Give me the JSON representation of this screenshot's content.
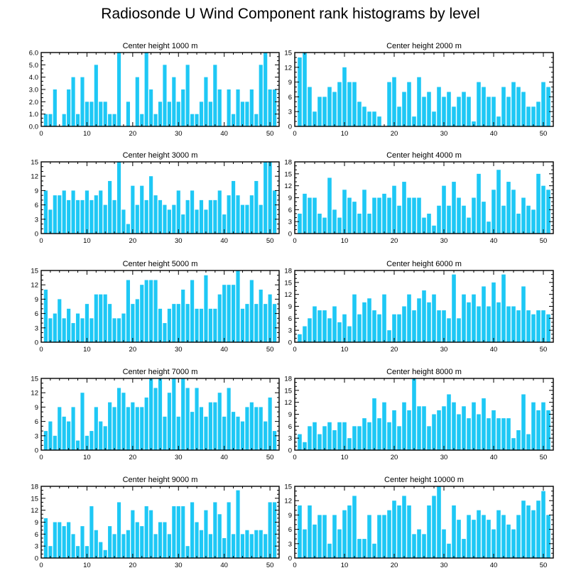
{
  "title": "Radiosonde U Wind Component rank histograms by level",
  "bar_color": "#1ec8f5",
  "chart_data": [
    {
      "type": "bar",
      "title": "Center height 1000 m",
      "x": [
        1,
        2,
        3,
        4,
        5,
        6,
        7,
        8,
        9,
        10,
        11,
        12,
        13,
        14,
        15,
        16,
        17,
        18,
        19,
        20,
        21,
        22,
        23,
        24,
        25,
        26,
        27,
        28,
        29,
        30,
        31,
        32,
        33,
        34,
        35,
        36,
        37,
        38,
        39,
        40,
        41,
        42,
        43,
        44,
        45,
        46,
        47,
        48,
        49,
        50,
        51
      ],
      "values": [
        1,
        1,
        3,
        0,
        1,
        3,
        4,
        1,
        4,
        2,
        2,
        5,
        2,
        2,
        1,
        1,
        6,
        0,
        2,
        0,
        4,
        1,
        6,
        3,
        1,
        2,
        5,
        2,
        4,
        2,
        3,
        5,
        1,
        1,
        2,
        4,
        2,
        5,
        3,
        0,
        3,
        1,
        3,
        2,
        2,
        3,
        1,
        5,
        6,
        3,
        3
      ],
      "xlim": [
        0,
        52
      ],
      "ylim": [
        0,
        6
      ],
      "yticks": [
        "0.0",
        "1.0",
        "2.0",
        "3.0",
        "4.0",
        "5.0",
        "6.0"
      ],
      "xticks": [
        "0",
        "10",
        "20",
        "30",
        "40",
        "50"
      ]
    },
    {
      "type": "bar",
      "title": "Center height 2000 m",
      "x": [
        1,
        2,
        3,
        4,
        5,
        6,
        7,
        8,
        9,
        10,
        11,
        12,
        13,
        14,
        15,
        16,
        17,
        18,
        19,
        20,
        21,
        22,
        23,
        24,
        25,
        26,
        27,
        28,
        29,
        30,
        31,
        32,
        33,
        34,
        35,
        36,
        37,
        38,
        39,
        40,
        41,
        42,
        43,
        44,
        45,
        46,
        47,
        48,
        49,
        50,
        51
      ],
      "values": [
        14,
        15,
        8,
        3,
        6,
        6,
        8,
        7,
        9,
        12,
        9,
        9,
        5,
        4,
        3,
        3,
        2,
        0,
        9,
        10,
        4,
        7,
        9,
        2,
        10,
        6,
        7,
        3,
        8,
        6,
        7,
        4,
        6,
        7,
        6,
        1,
        9,
        8,
        6,
        6,
        2,
        8,
        6,
        9,
        8,
        7,
        4,
        4,
        5,
        9,
        8
      ],
      "xlim": [
        0,
        52
      ],
      "ylim": [
        0,
        15
      ],
      "yticks": [
        "0",
        "3",
        "6",
        "9",
        "12",
        "15"
      ],
      "xticks": [
        "0",
        "10",
        "20",
        "30",
        "40",
        "50"
      ]
    },
    {
      "type": "bar",
      "title": "Center height 3000 m",
      "x": [
        1,
        2,
        3,
        4,
        5,
        6,
        7,
        8,
        9,
        10,
        11,
        12,
        13,
        14,
        15,
        16,
        17,
        18,
        19,
        20,
        21,
        22,
        23,
        24,
        25,
        26,
        27,
        28,
        29,
        30,
        31,
        32,
        33,
        34,
        35,
        36,
        37,
        38,
        39,
        40,
        41,
        42,
        43,
        44,
        45,
        46,
        47,
        48,
        49,
        50,
        51
      ],
      "values": [
        9,
        5,
        8,
        8,
        9,
        7,
        9,
        7,
        7,
        9,
        7,
        8,
        9,
        6,
        11,
        7,
        15,
        5,
        2,
        10,
        6,
        10,
        7,
        12,
        8,
        7,
        6,
        5,
        6,
        9,
        4,
        7,
        9,
        5,
        7,
        5,
        7,
        7,
        9,
        4,
        8,
        11,
        8,
        6,
        6,
        8,
        11,
        6,
        15,
        15,
        9
      ],
      "xlim": [
        0,
        52
      ],
      "ylim": [
        0,
        15
      ],
      "yticks": [
        "0",
        "3",
        "6",
        "9",
        "12",
        "15"
      ],
      "xticks": [
        "0",
        "10",
        "20",
        "30",
        "40",
        "50"
      ]
    },
    {
      "type": "bar",
      "title": "Center height 4000 m",
      "x": [
        1,
        2,
        3,
        4,
        5,
        6,
        7,
        8,
        9,
        10,
        11,
        12,
        13,
        14,
        15,
        16,
        17,
        18,
        19,
        20,
        21,
        22,
        23,
        24,
        25,
        26,
        27,
        28,
        29,
        30,
        31,
        32,
        33,
        34,
        35,
        36,
        37,
        38,
        39,
        40,
        41,
        42,
        43,
        44,
        45,
        46,
        47,
        48,
        49,
        50,
        51
      ],
      "values": [
        5,
        10,
        9,
        9,
        5,
        4,
        14,
        6,
        4,
        11,
        9,
        8,
        5,
        11,
        5,
        9,
        9,
        10,
        9,
        12,
        7,
        13,
        9,
        9,
        9,
        4,
        5,
        2,
        7,
        12,
        7,
        13,
        9,
        7,
        4,
        9,
        15,
        8,
        3,
        11,
        16,
        7,
        13,
        11,
        5,
        9,
        7,
        6,
        15,
        12,
        11
      ],
      "xlim": [
        0,
        52
      ],
      "ylim": [
        0,
        18
      ],
      "yticks": [
        "0",
        "3",
        "6",
        "9",
        "12",
        "15",
        "18"
      ],
      "xticks": [
        "0",
        "10",
        "20",
        "30",
        "40",
        "50"
      ]
    },
    {
      "type": "bar",
      "title": "Center height 5000 m",
      "x": [
        1,
        2,
        3,
        4,
        5,
        6,
        7,
        8,
        9,
        10,
        11,
        12,
        13,
        14,
        15,
        16,
        17,
        18,
        19,
        20,
        21,
        22,
        23,
        24,
        25,
        26,
        27,
        28,
        29,
        30,
        31,
        32,
        33,
        34,
        35,
        36,
        37,
        38,
        39,
        40,
        41,
        42,
        43,
        44,
        45,
        46,
        47,
        48,
        49,
        50,
        51
      ],
      "values": [
        11,
        5,
        6,
        9,
        5,
        7,
        4,
        6,
        5,
        8,
        5,
        10,
        10,
        10,
        8,
        5,
        5,
        6,
        13,
        8,
        9,
        12,
        13,
        13,
        13,
        7,
        4,
        7,
        8,
        8,
        11,
        8,
        13,
        7,
        7,
        14,
        7,
        7,
        10,
        12,
        12,
        12,
        15,
        7,
        8,
        13,
        8,
        11,
        8,
        10,
        8
      ],
      "xlim": [
        0,
        52
      ],
      "ylim": [
        0,
        15
      ],
      "yticks": [
        "0",
        "3",
        "6",
        "9",
        "12",
        "15"
      ],
      "xticks": [
        "0",
        "10",
        "20",
        "30",
        "40",
        "50"
      ]
    },
    {
      "type": "bar",
      "title": "Center height 6000 m",
      "x": [
        1,
        2,
        3,
        4,
        5,
        6,
        7,
        8,
        9,
        10,
        11,
        12,
        13,
        14,
        15,
        16,
        17,
        18,
        19,
        20,
        21,
        22,
        23,
        24,
        25,
        26,
        27,
        28,
        29,
        30,
        31,
        32,
        33,
        34,
        35,
        36,
        37,
        38,
        39,
        40,
        41,
        42,
        43,
        44,
        45,
        46,
        47,
        48,
        49,
        50,
        51
      ],
      "values": [
        2,
        4,
        6,
        9,
        8,
        8,
        6,
        9,
        5,
        7,
        4,
        12,
        7,
        10,
        11,
        8,
        7,
        12,
        3,
        7,
        7,
        9,
        12,
        8,
        11,
        13,
        10,
        12,
        8,
        8,
        6,
        17,
        6,
        12,
        10,
        12,
        9,
        14,
        9,
        15,
        10,
        17,
        9,
        9,
        8,
        14,
        8,
        7,
        8,
        8,
        7
      ],
      "xlim": [
        0,
        52
      ],
      "ylim": [
        0,
        18
      ],
      "yticks": [
        "0",
        "3",
        "6",
        "9",
        "12",
        "15",
        "18"
      ],
      "xticks": [
        "0",
        "10",
        "20",
        "30",
        "40",
        "50"
      ]
    },
    {
      "type": "bar",
      "title": "Center height 7000 m",
      "x": [
        1,
        2,
        3,
        4,
        5,
        6,
        7,
        8,
        9,
        10,
        11,
        12,
        13,
        14,
        15,
        16,
        17,
        18,
        19,
        20,
        21,
        22,
        23,
        24,
        25,
        26,
        27,
        28,
        29,
        30,
        31,
        32,
        33,
        34,
        35,
        36,
        37,
        38,
        39,
        40,
        41,
        42,
        43,
        44,
        45,
        46,
        47,
        48,
        49,
        50,
        51
      ],
      "values": [
        4,
        6,
        3,
        9,
        7,
        6,
        9,
        2,
        12,
        3,
        4,
        9,
        6,
        5,
        10,
        9,
        13,
        12,
        9,
        10,
        9,
        9,
        11,
        15,
        13,
        15,
        7,
        12,
        15,
        7,
        15,
        13,
        8,
        13,
        9,
        7,
        10,
        10,
        12,
        7,
        13,
        8,
        7,
        6,
        9,
        10,
        9,
        9,
        6,
        11,
        4
      ],
      "xlim": [
        0,
        52
      ],
      "ylim": [
        0,
        15
      ],
      "yticks": [
        "0",
        "3",
        "6",
        "9",
        "12",
        "15"
      ],
      "xticks": [
        "0",
        "10",
        "20",
        "30",
        "40",
        "50"
      ]
    },
    {
      "type": "bar",
      "title": "Center height 8000 m",
      "x": [
        1,
        2,
        3,
        4,
        5,
        6,
        7,
        8,
        9,
        10,
        11,
        12,
        13,
        14,
        15,
        16,
        17,
        18,
        19,
        20,
        21,
        22,
        23,
        24,
        25,
        26,
        27,
        28,
        29,
        30,
        31,
        32,
        33,
        34,
        35,
        36,
        37,
        38,
        39,
        40,
        41,
        42,
        43,
        44,
        45,
        46,
        47,
        48,
        49,
        50,
        51
      ],
      "values": [
        4,
        2,
        6,
        7,
        4,
        6,
        7,
        5,
        7,
        7,
        3,
        6,
        6,
        8,
        7,
        13,
        8,
        12,
        7,
        10,
        6,
        12,
        10,
        18,
        11,
        11,
        6,
        9,
        10,
        11,
        14,
        12,
        9,
        11,
        8,
        12,
        9,
        13,
        8,
        10,
        8,
        8,
        8,
        3,
        5,
        14,
        4,
        12,
        10,
        12,
        10
      ],
      "xlim": [
        0,
        52
      ],
      "ylim": [
        0,
        18
      ],
      "yticks": [
        "0",
        "3",
        "6",
        "9",
        "12",
        "15",
        "18"
      ],
      "xticks": [
        "0",
        "10",
        "20",
        "30",
        "40",
        "50"
      ]
    },
    {
      "type": "bar",
      "title": "Center height 9000 m",
      "x": [
        1,
        2,
        3,
        4,
        5,
        6,
        7,
        8,
        9,
        10,
        11,
        12,
        13,
        14,
        15,
        16,
        17,
        18,
        19,
        20,
        21,
        22,
        23,
        24,
        25,
        26,
        27,
        28,
        29,
        30,
        31,
        32,
        33,
        34,
        35,
        36,
        37,
        38,
        39,
        40,
        41,
        42,
        43,
        44,
        45,
        46,
        47,
        48,
        49,
        50,
        51
      ],
      "values": [
        10,
        3,
        9,
        9,
        8,
        9,
        6,
        3,
        8,
        3,
        13,
        7,
        4,
        2,
        8,
        6,
        14,
        6,
        7,
        12,
        9,
        8,
        13,
        12,
        6,
        9,
        9,
        6,
        13,
        13,
        13,
        3,
        14,
        9,
        7,
        12,
        6,
        14,
        11,
        5,
        14,
        6,
        17,
        6,
        7,
        6,
        7,
        7,
        6,
        14,
        14
      ],
      "xlim": [
        0,
        52
      ],
      "ylim": [
        0,
        18
      ],
      "yticks": [
        "0",
        "3",
        "6",
        "9",
        "12",
        "15",
        "18"
      ],
      "xticks": [
        "0",
        "10",
        "20",
        "30",
        "40",
        "50"
      ]
    },
    {
      "type": "bar",
      "title": "Center height 10000 m",
      "x": [
        1,
        2,
        3,
        4,
        5,
        6,
        7,
        8,
        9,
        10,
        11,
        12,
        13,
        14,
        15,
        16,
        17,
        18,
        19,
        20,
        21,
        22,
        23,
        24,
        25,
        26,
        27,
        28,
        29,
        30,
        31,
        32,
        33,
        34,
        35,
        36,
        37,
        38,
        39,
        40,
        41,
        42,
        43,
        44,
        45,
        46,
        47,
        48,
        49,
        50,
        51
      ],
      "values": [
        11,
        6,
        11,
        7,
        9,
        9,
        3,
        9,
        6,
        10,
        11,
        13,
        4,
        4,
        9,
        3,
        9,
        9,
        10,
        12,
        11,
        13,
        11,
        5,
        6,
        5,
        11,
        13,
        15,
        6,
        3,
        11,
        8,
        4,
        9,
        8,
        10,
        9,
        8,
        6,
        10,
        9,
        7,
        6,
        9,
        12,
        11,
        10,
        12,
        14,
        9
      ],
      "xlim": [
        0,
        52
      ],
      "ylim": [
        0,
        15
      ],
      "yticks": [
        "0",
        "3",
        "6",
        "9",
        "12",
        "15"
      ],
      "xticks": [
        "0",
        "10",
        "20",
        "30",
        "40",
        "50"
      ]
    }
  ]
}
